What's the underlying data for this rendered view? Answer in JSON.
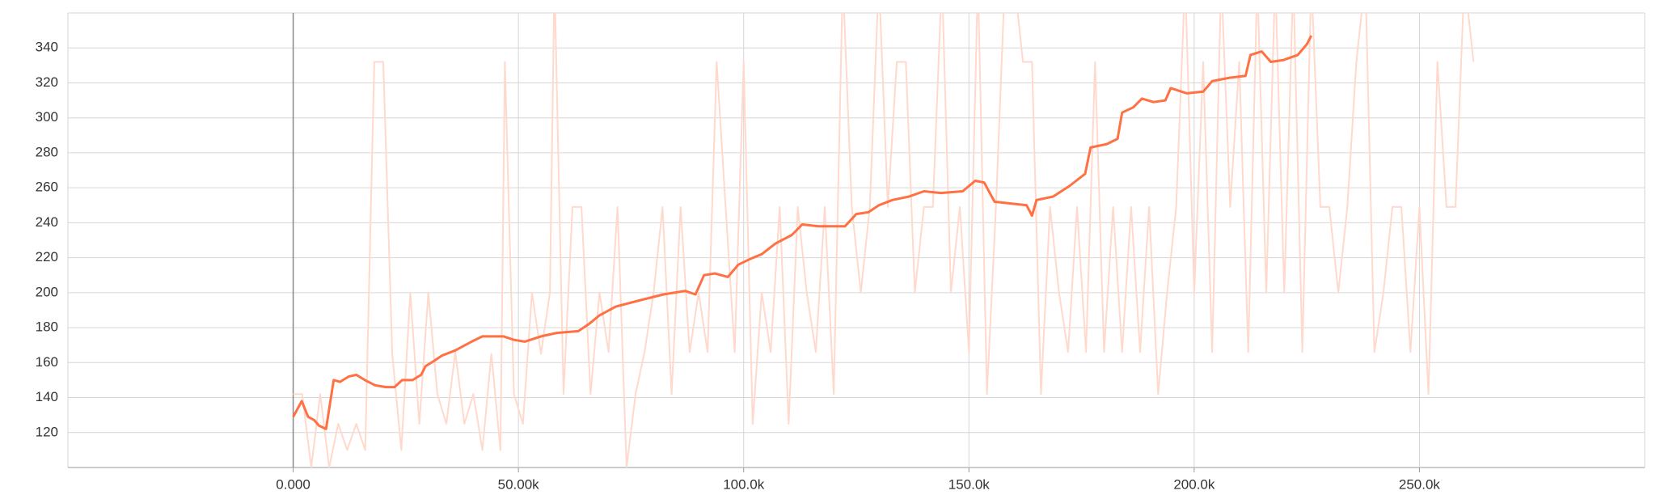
{
  "chart_data": {
    "type": "line",
    "xlim": [
      -50000,
      300000
    ],
    "ylim": [
      100,
      360
    ],
    "xticks": [
      {
        "value": 0,
        "label": "0.000"
      },
      {
        "value": 50000,
        "label": "50.00k"
      },
      {
        "value": 100000,
        "label": "100.0k"
      },
      {
        "value": 150000,
        "label": "150.0k"
      },
      {
        "value": 200000,
        "label": "200.0k"
      },
      {
        "value": 250000,
        "label": "250.0k"
      }
    ],
    "yticks": [
      120,
      140,
      160,
      180,
      200,
      220,
      240,
      260,
      280,
      300,
      320,
      340
    ],
    "grid": true,
    "series": [
      {
        "color": "#ffd9cc",
        "x": [
          0,
          2000,
          4000,
          6000,
          8000,
          10000,
          12000,
          14000,
          16000,
          18000,
          20000,
          22000,
          24000,
          26000,
          28000,
          30000,
          32000,
          34000,
          36000,
          38000,
          40000,
          42000,
          44000,
          46000,
          47000,
          49000,
          51000,
          53000,
          55000,
          57000,
          58000,
          60000,
          62000,
          64000,
          66000,
          68000,
          70000,
          72000,
          74000,
          76000,
          78000,
          80000,
          82000,
          84000,
          86000,
          88000,
          90000,
          92000,
          94000,
          96000,
          98000,
          100000,
          102000,
          104000,
          106000,
          108000,
          110000,
          112000,
          114000,
          116000,
          118000,
          120000,
          122000,
          124000,
          126000,
          128000,
          130000,
          132000,
          134000,
          136000,
          138000,
          140000,
          142000,
          144000,
          146000,
          148000,
          150000,
          152000,
          154000,
          156000,
          158000,
          160000,
          162000,
          164000,
          166000,
          168000,
          170000,
          172000,
          174000,
          176000,
          178000,
          180000,
          182000,
          184000,
          186000,
          188000,
          190000,
          192000,
          194000,
          196000,
          198000,
          200000,
          202000,
          204000,
          206000,
          208000,
          210000,
          212000,
          214000,
          216000,
          218000,
          220000,
          222000,
          224000,
          226000,
          228000,
          230000,
          232000,
          234000,
          236000,
          238000,
          240000,
          242000,
          244000,
          246000,
          248000,
          250000,
          252000,
          254000,
          256000,
          258000,
          260000,
          262000
        ],
        "values": [
          142,
          142,
          100,
          142,
          100,
          125,
          110,
          125,
          110,
          332,
          332,
          165,
          110,
          200,
          125,
          200,
          142,
          125,
          166,
          125,
          142,
          110,
          165,
          110,
          332,
          142,
          125,
          200,
          165,
          200,
          380,
          142,
          249,
          249,
          142,
          200,
          166,
          249,
          100,
          142,
          166,
          200,
          249,
          142,
          249,
          166,
          200,
          166,
          332,
          249,
          166,
          332,
          125,
          200,
          166,
          249,
          125,
          249,
          200,
          166,
          249,
          142,
          380,
          249,
          200,
          249,
          380,
          249,
          332,
          332,
          200,
          249,
          249,
          380,
          200,
          249,
          166,
          380,
          142,
          249,
          380,
          380,
          332,
          332,
          142,
          249,
          200,
          166,
          249,
          166,
          332,
          166,
          249,
          166,
          249,
          166,
          249,
          142,
          200,
          249,
          380,
          200,
          332,
          166,
          380,
          249,
          332,
          166,
          380,
          200,
          380,
          200,
          380,
          166,
          380,
          249,
          249,
          200,
          249,
          332,
          380,
          166,
          200,
          249,
          249,
          166,
          249,
          142,
          332,
          249,
          249,
          380,
          332
        ]
      },
      {
        "color": "#ff7043",
        "x": [
          0,
          1900,
          3300,
          4700,
          5700,
          7300,
          9000,
          10400,
          12300,
          14000,
          15900,
          18200,
          20600,
          22500,
          24200,
          26500,
          28400,
          29400,
          31300,
          33000,
          36000,
          39600,
          42000,
          46700,
          49000,
          51400,
          55000,
          58500,
          63300,
          65600,
          68000,
          71600,
          77500,
          82200,
          87000,
          89300,
          91200,
          93600,
          96500,
          98800,
          101200,
          104000,
          107000,
          110700,
          113000,
          116600,
          120000,
          122500,
          125000,
          127700,
          130000,
          133000,
          136700,
          140000,
          143800,
          148600,
          151400,
          153400,
          155700,
          159300,
          162800,
          164000,
          165000,
          168700,
          172300,
          175800,
          177000,
          180600,
          183000,
          184000,
          186500,
          188400,
          191000,
          193600,
          194800,
          198400,
          202000,
          204000,
          208000,
          211400,
          212500,
          215000,
          217000,
          219700,
          223000,
          225000,
          226000
        ],
        "values": [
          129,
          138,
          129,
          127,
          124,
          122,
          150,
          149,
          152,
          153,
          150,
          147,
          146,
          146,
          150,
          150,
          153,
          158,
          161,
          164,
          167,
          172,
          175,
          175,
          173,
          172,
          175,
          177,
          178,
          182,
          187,
          192,
          196,
          199,
          201,
          199,
          210,
          211,
          209,
          216,
          219,
          222,
          228,
          233,
          239,
          238,
          238,
          238,
          245,
          246,
          250,
          253,
          255,
          258,
          257,
          258,
          264,
          263,
          252,
          251,
          250,
          244,
          253,
          255,
          261,
          268,
          283,
          285,
          288,
          303,
          306,
          311,
          309,
          310,
          317,
          314,
          315,
          321,
          323,
          324,
          336,
          338,
          332,
          333,
          336,
          342,
          347
        ]
      }
    ]
  }
}
